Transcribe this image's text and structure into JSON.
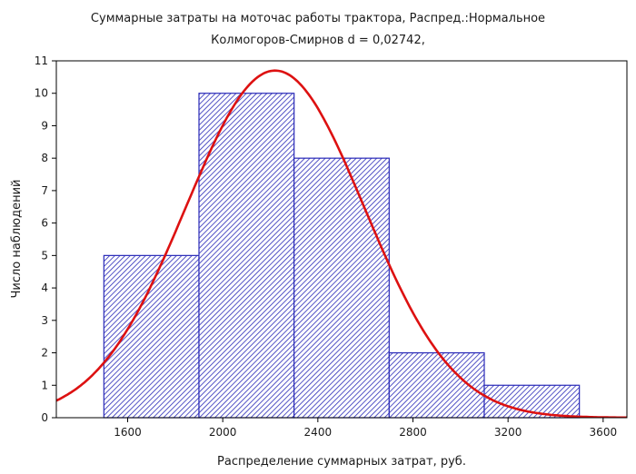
{
  "chart_data": {
    "type": "bar",
    "title": "Суммарные затраты на моточас работы трактора, Распред.:Нормальное",
    "subtitle": "Колмогоров-Смирнов d = 0,02742,",
    "xlabel": "Распределение суммарных затрат, руб.",
    "ylabel": "Число наблюдений",
    "xlim": [
      1300,
      3700
    ],
    "ylim": [
      0,
      11
    ],
    "x_ticks": [
      1600,
      2000,
      2400,
      2800,
      3200,
      3600
    ],
    "y_ticks": [
      0,
      1,
      2,
      3,
      4,
      5,
      6,
      7,
      8,
      9,
      10,
      11
    ],
    "bins": [
      {
        "from": 1500,
        "to": 1900,
        "value": 5
      },
      {
        "from": 1900,
        "to": 2300,
        "value": 10
      },
      {
        "from": 2300,
        "to": 2700,
        "value": 8
      },
      {
        "from": 2700,
        "to": 3100,
        "value": 2
      },
      {
        "from": 3100,
        "to": 3500,
        "value": 1
      }
    ],
    "fit_curve": {
      "type": "normal",
      "mean": 2220,
      "sd": 375,
      "peak": 10.7
    },
    "grid": false,
    "colors": {
      "bar_fill": "#2a2ab8",
      "bar_edge": "#2a2ab8",
      "curve": "#dd1111",
      "axis": "#000000"
    }
  }
}
